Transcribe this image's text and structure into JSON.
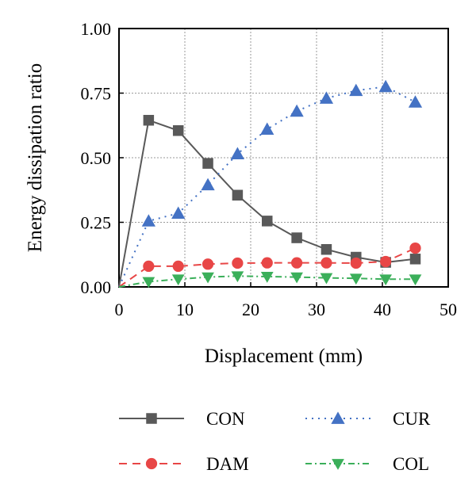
{
  "chart_data": {
    "type": "line",
    "title": "",
    "xlabel": "Displacement (mm)",
    "ylabel": "Energy dissipation ratio",
    "xlim": [
      0,
      50
    ],
    "ylim": [
      0,
      1.0
    ],
    "xticks": [
      "0",
      "10",
      "20",
      "30",
      "40",
      "50"
    ],
    "yticks": [
      "0.00",
      "0.25",
      "0.50",
      "0.75",
      "1.00"
    ],
    "grid": true,
    "legend_position": "bottom",
    "series": [
      {
        "name": "CON",
        "color": "#595959",
        "marker": "square",
        "line_style": "solid",
        "x": [
          0,
          4.5,
          9,
          13.5,
          18,
          22.5,
          27,
          31.5,
          36,
          40.5,
          45
        ],
        "y": [
          0.0,
          0.645,
          0.605,
          0.478,
          0.355,
          0.255,
          0.19,
          0.145,
          0.115,
          0.095,
          0.108
        ]
      },
      {
        "name": "CUR",
        "color": "#4472C4",
        "marker": "triangle-up",
        "line_style": "dotted",
        "x": [
          0,
          4.5,
          9,
          13.5,
          18,
          22.5,
          27,
          31.5,
          36,
          40.5,
          45
        ],
        "y": [
          0.0,
          0.255,
          0.285,
          0.395,
          0.515,
          0.61,
          0.68,
          0.73,
          0.76,
          0.775,
          0.715
        ]
      },
      {
        "name": "DAM",
        "color": "#E84646",
        "marker": "circle",
        "line_style": "dashed",
        "x": [
          0,
          4.5,
          9,
          13.5,
          18,
          22.5,
          27,
          31.5,
          36,
          40.5,
          45
        ],
        "y": [
          0.0,
          0.08,
          0.08,
          0.088,
          0.092,
          0.093,
          0.093,
          0.093,
          0.092,
          0.098,
          0.15
        ]
      },
      {
        "name": "COL",
        "color": "#3BAF5A",
        "marker": "triangle-down",
        "line_style": "dash-dot",
        "x": [
          0,
          4.5,
          9,
          13.5,
          18,
          22.5,
          27,
          31.5,
          36,
          40.5,
          45
        ],
        "y": [
          0.0,
          0.02,
          0.03,
          0.038,
          0.042,
          0.04,
          0.038,
          0.035,
          0.033,
          0.03,
          0.03
        ]
      }
    ]
  }
}
